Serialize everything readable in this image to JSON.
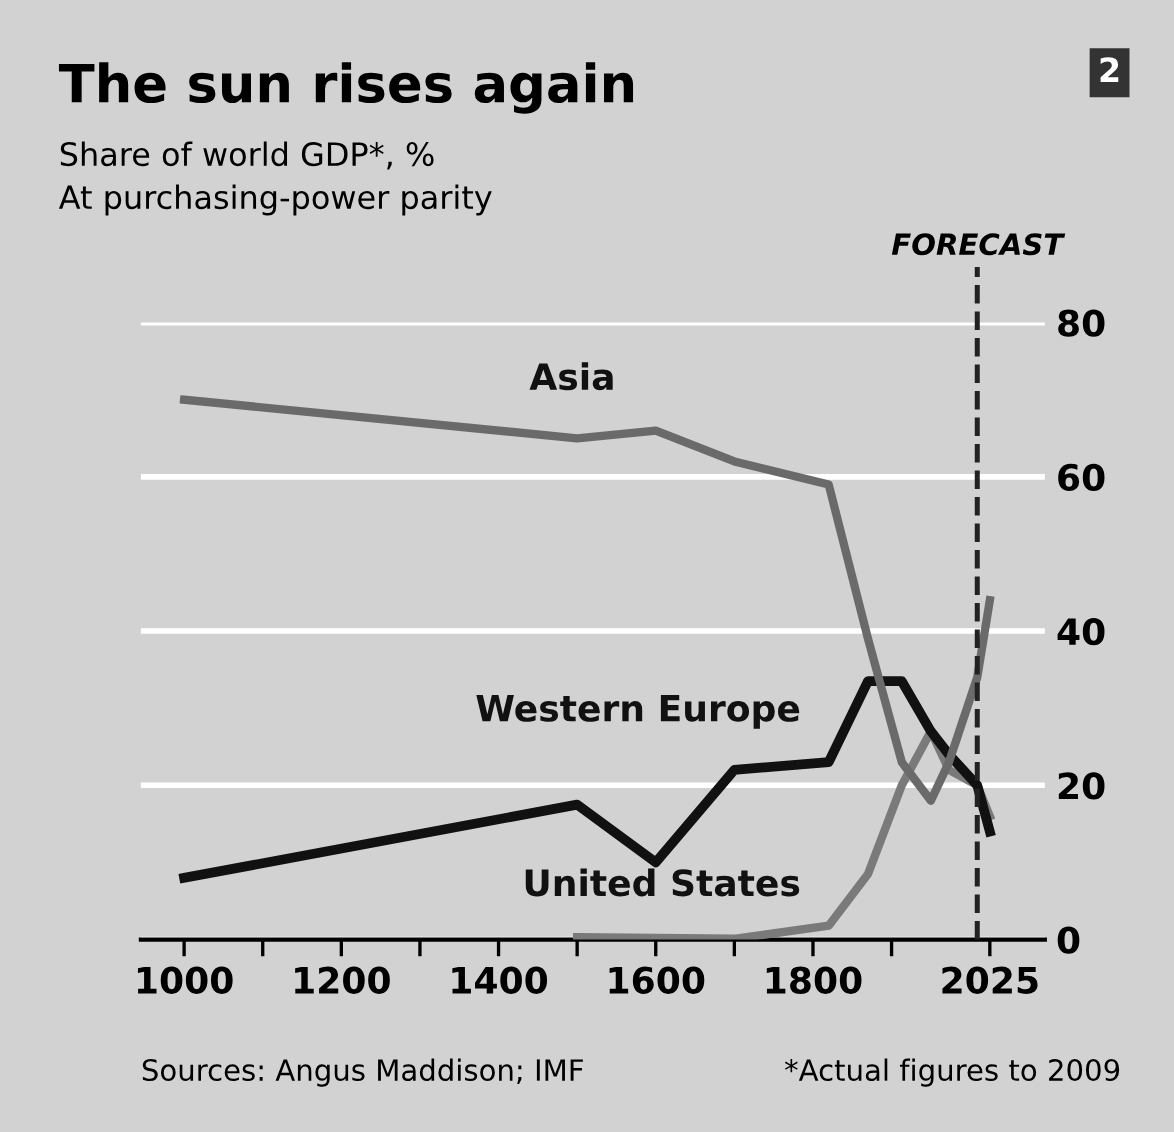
{
  "chart_data": {
    "type": "line",
    "title": "The sun rises again",
    "subtitle": "Share of world GDP*, %\nAt purchasing-power parity",
    "series": [
      {
        "name": "Asia",
        "color": "#6a6a6a",
        "x": [
          1000,
          1500,
          1600,
          1700,
          1820,
          1870,
          1913,
          1950,
          1973,
          2009,
          2025
        ],
        "values": [
          70,
          65,
          66,
          62,
          59,
          39,
          23,
          18,
          23,
          34,
          44
        ]
      },
      {
        "name": "Western Europe",
        "color": "#111111",
        "x": [
          1000,
          1500,
          1600,
          1700,
          1820,
          1870,
          1913,
          1950,
          1973,
          2009,
          2025
        ],
        "values": [
          8,
          17.5,
          10,
          22,
          23,
          33.5,
          33.5,
          27,
          24,
          20,
          14
        ]
      },
      {
        "name": "United States",
        "color": "#7a7a7a",
        "x": [
          1500,
          1600,
          1700,
          1820,
          1870,
          1913,
          1950,
          1973,
          2009,
          2025
        ],
        "values": [
          0.3,
          0.2,
          0.1,
          1.8,
          8.5,
          20,
          27,
          22,
          20,
          16
        ]
      }
    ],
    "xlim": [
      945,
      2095
    ],
    "ylim": [
      0,
      80
    ],
    "xticks": [
      1000,
      {
        "value": 1100,
        "label": null
      },
      1200,
      {
        "value": 1300,
        "label": null
      },
      1400,
      {
        "value": 1500,
        "label": null
      },
      1600,
      {
        "value": 1700,
        "label": null
      },
      1800,
      {
        "value": 1900,
        "label": null
      },
      2025
    ],
    "yticks": [
      0,
      20,
      40,
      60,
      80
    ],
    "grid": "y",
    "legend": false,
    "ref_lines": [
      {
        "axis": "x",
        "value": 2009,
        "label": "FORECAST",
        "line_style": "dashed",
        "color": "#222222"
      }
    ],
    "annotations": [
      "2",
      "Sources: Angus Maddison; IMF",
      "*Actual figures to 2009"
    ]
  }
}
